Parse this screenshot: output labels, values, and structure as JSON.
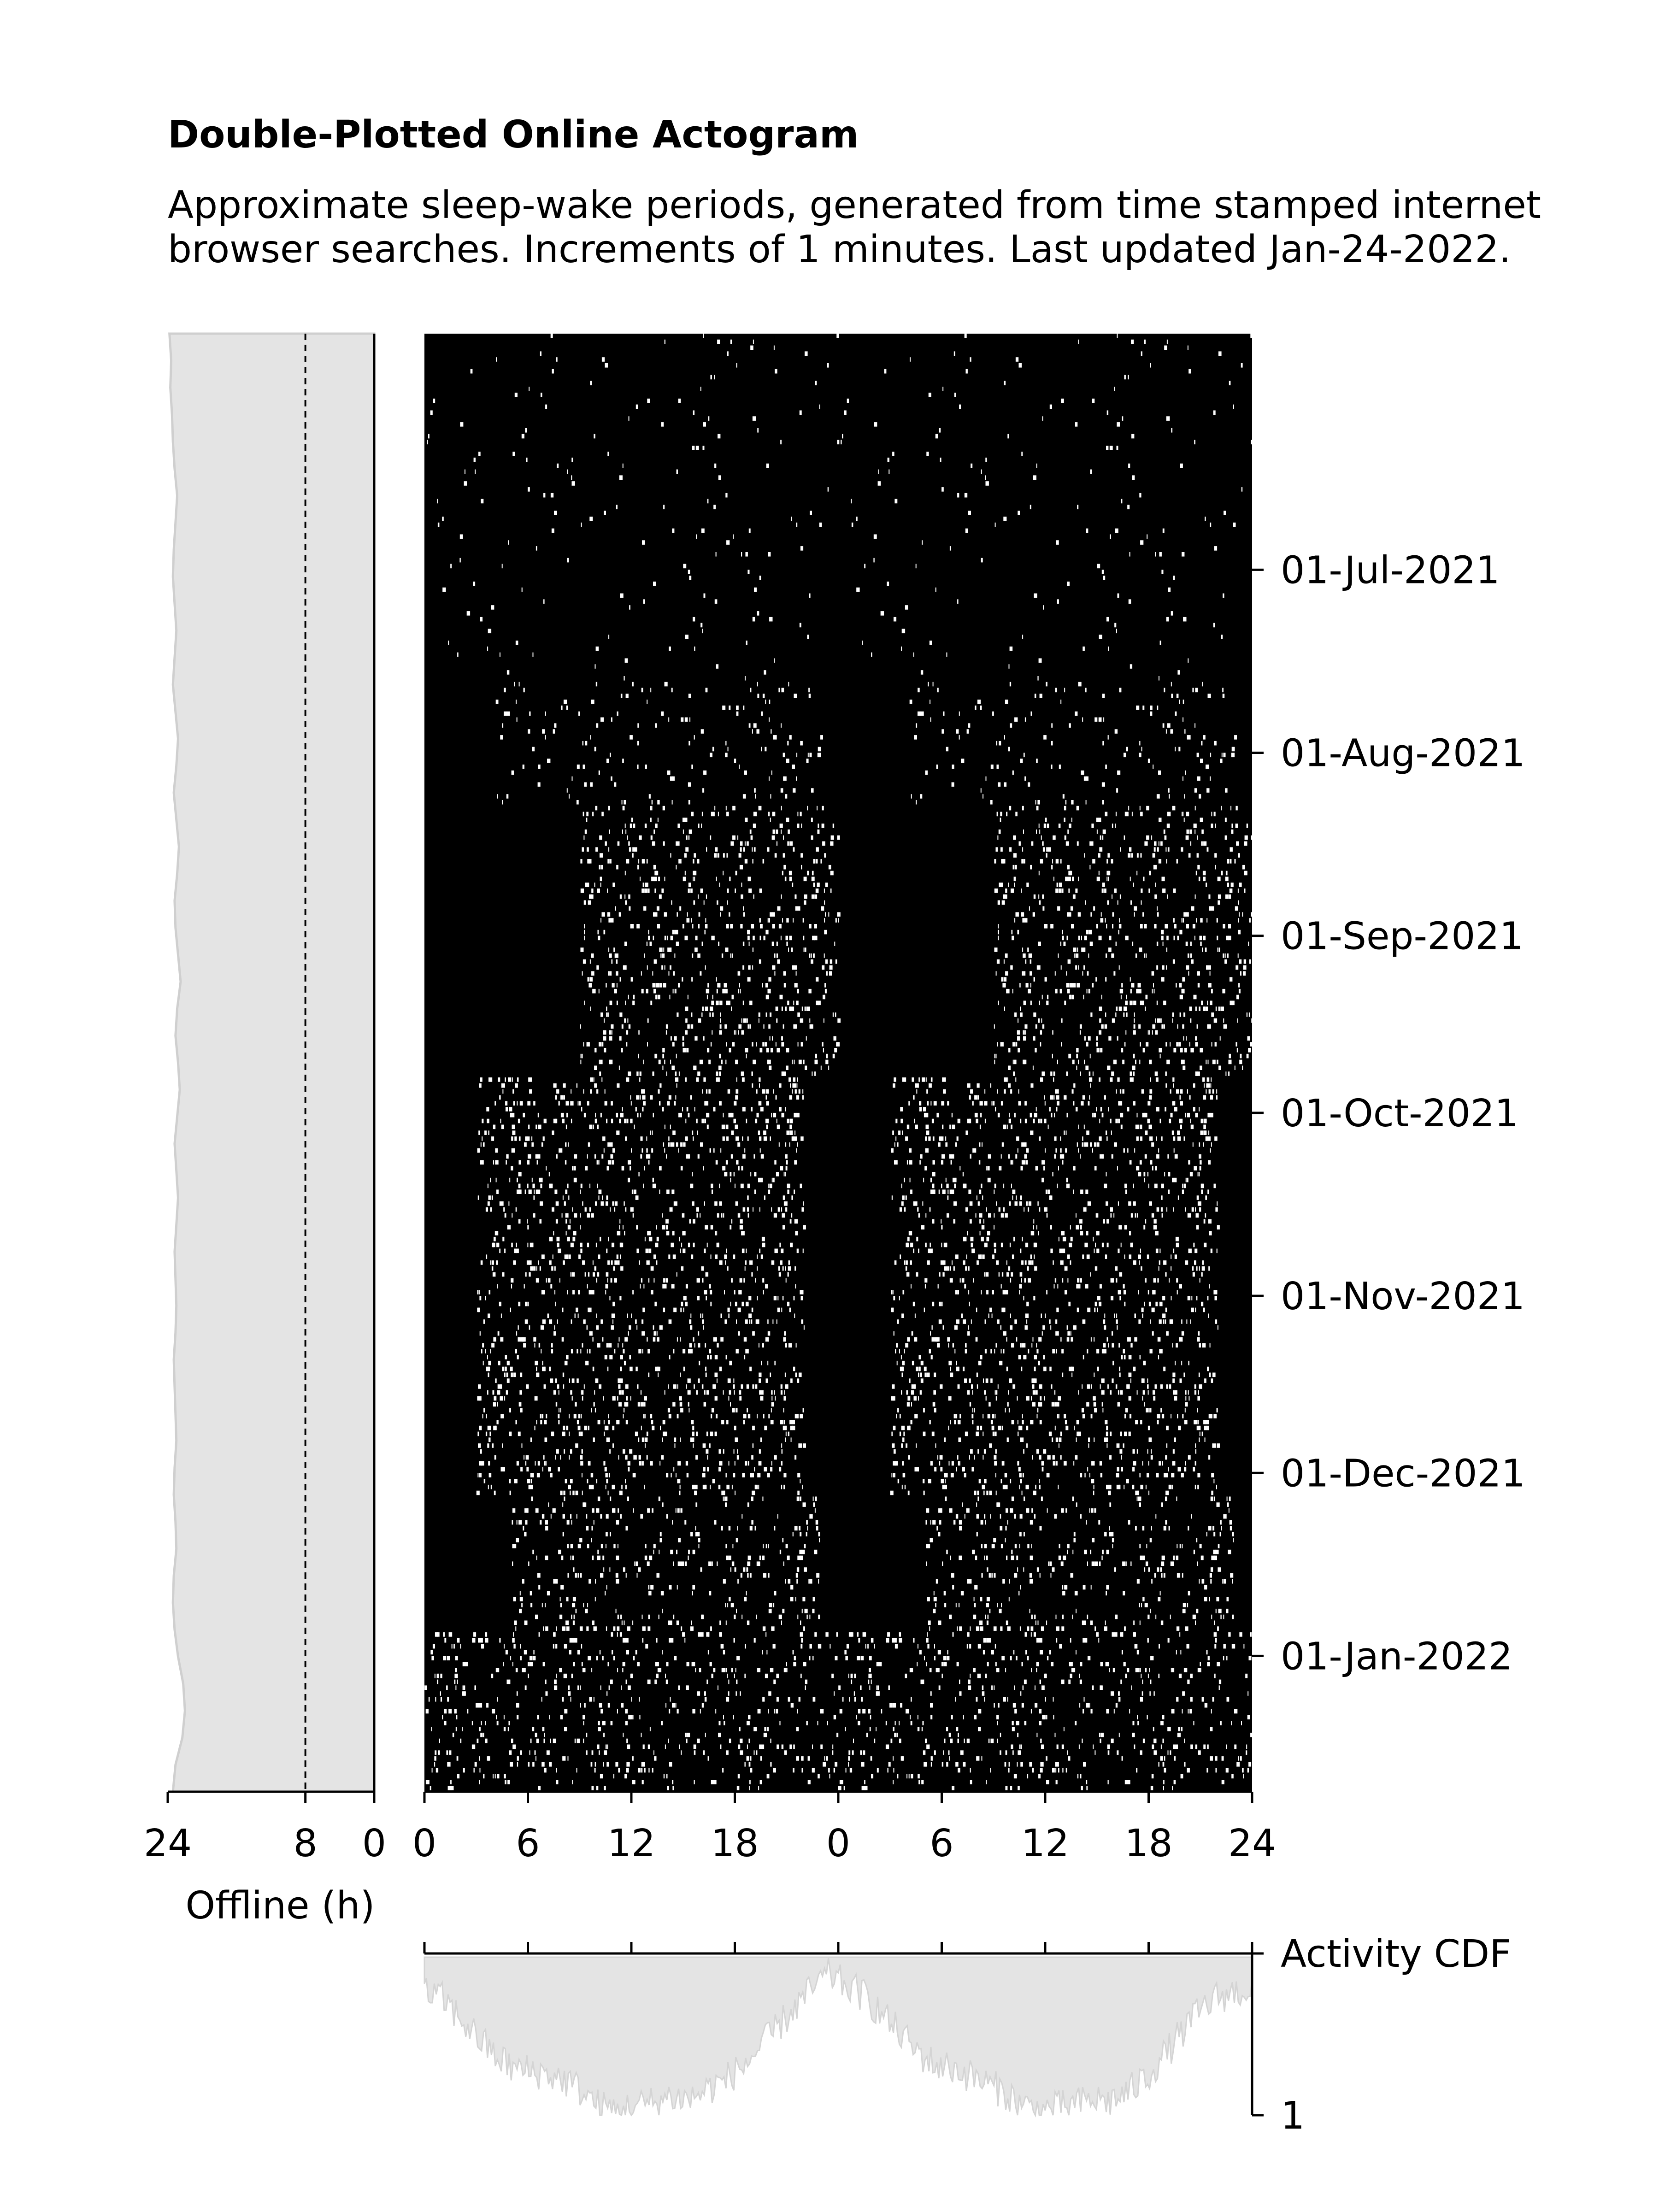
{
  "title": "Double-Plotted Online Actogram",
  "subtitle_lines": [
    "Approximate sleep-wake periods, generated from time stamped internet",
    "browser searches. Increments of 1 minutes. Last updated Jan-24-2022."
  ],
  "colors": {
    "background": "#ffffff",
    "actogram_bg": "#000000",
    "activity": "#ffffff",
    "fill_gray": "#e4e4e4",
    "fill_edge": "#cfcfcf"
  },
  "chart_data": [
    {
      "type": "area",
      "panel": "offline-hours",
      "xlabel": "Offline (h)",
      "xlim": [
        24,
        0
      ],
      "xticks": [
        "24",
        "8",
        "0"
      ],
      "reference_line_x": 8,
      "profile_hours": [
        23.8,
        23.6,
        23.7,
        23.5,
        23.4,
        23.2,
        22.9,
        23.1,
        23.3,
        23.4,
        23.2,
        23.0,
        23.2,
        23.4,
        23.1,
        22.8,
        23.0,
        23.3,
        23.0,
        22.7,
        22.9,
        23.2,
        23.1,
        22.8,
        22.5,
        22.9,
        23.1,
        22.8,
        22.6,
        22.9,
        23.2,
        23.0,
        22.8,
        23.0,
        23.2,
        23.1,
        23.0,
        23.1,
        23.3,
        23.2,
        23.1,
        23.0,
        23.2,
        23.3,
        23.1,
        23.0,
        23.3,
        23.4,
        23.2,
        22.8,
        22.2,
        22.0,
        22.3,
        23.1,
        23.4
      ]
    },
    {
      "type": "heatmap",
      "panel": "double-plotted-actogram",
      "xlim": [
        0,
        48
      ],
      "xticks": [
        "0",
        "6",
        "12",
        "18",
        "0",
        "6",
        "12",
        "18",
        "24"
      ],
      "date_range": [
        "2021-05-22",
        "2022-01-24"
      ],
      "date_ticks": [
        "01-Jul-2021",
        "01-Aug-2021",
        "01-Sep-2021",
        "01-Oct-2021",
        "01-Nov-2021",
        "01-Dec-2021",
        "01-Jan-2022"
      ],
      "active_windows_hours": [
        {
          "from": "2021-05-22",
          "to": "2021-07-20",
          "start": 0,
          "end": 24,
          "density": 0.05
        },
        {
          "from": "2021-07-20",
          "to": "2021-08-10",
          "start": 4,
          "end": 23,
          "density": 0.15
        },
        {
          "from": "2021-08-10",
          "to": "2021-09-25",
          "start": 9,
          "end": 24,
          "density": 0.3
        },
        {
          "from": "2021-09-25",
          "to": "2021-12-05",
          "start": 3,
          "end": 22,
          "density": 0.4
        },
        {
          "from": "2021-12-05",
          "to": "2021-12-28",
          "start": 5,
          "end": 23,
          "density": 0.3
        },
        {
          "from": "2021-12-28",
          "to": "2022-01-24",
          "start": 0,
          "end": 24,
          "density": 0.35
        }
      ]
    },
    {
      "type": "area",
      "panel": "activity-cdf",
      "ylabel": "Activity CDF",
      "yticks": [
        "1"
      ],
      "xlim": [
        0,
        48
      ],
      "profile": [
        0.78,
        0.74,
        0.62,
        0.5,
        0.38,
        0.3,
        0.28,
        0.26,
        0.22,
        0.15,
        0.05,
        0.03,
        0.06,
        0.08,
        0.12,
        0.1,
        0.16,
        0.22,
        0.3,
        0.42,
        0.55,
        0.68,
        0.8,
        0.9,
        0.82,
        0.76,
        0.64,
        0.52,
        0.4,
        0.32,
        0.3,
        0.25,
        0.2,
        0.14,
        0.06,
        0.03,
        0.05,
        0.07,
        0.1,
        0.09,
        0.15,
        0.24,
        0.38,
        0.52,
        0.66,
        0.75,
        0.78,
        0.8
      ]
    }
  ]
}
